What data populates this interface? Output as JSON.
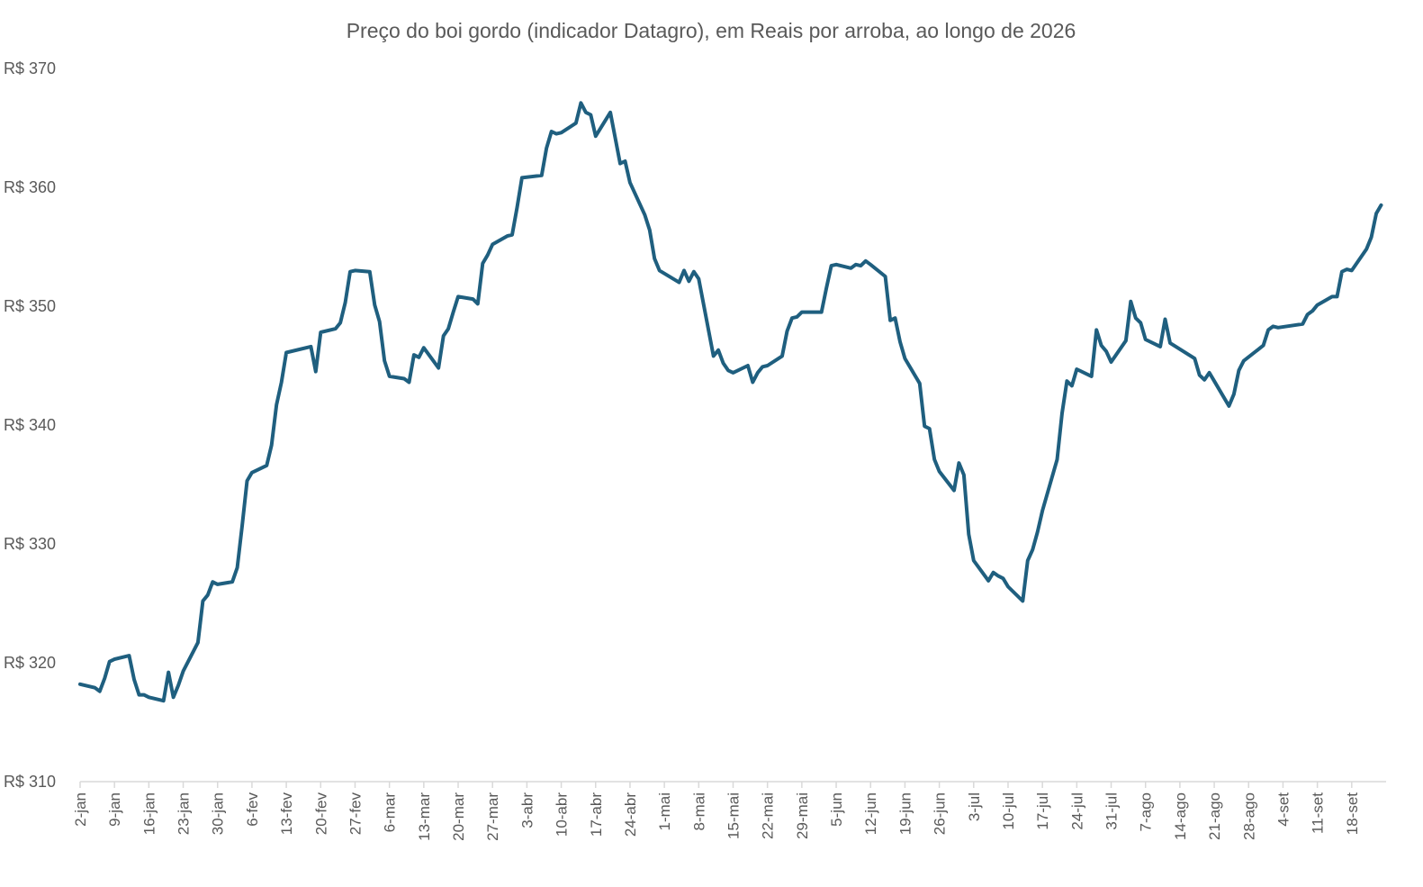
{
  "chart_data": {
    "type": "line",
    "title": "Preço do boi gordo (indicador Datagro), em Reais por arroba, ao longo de 2026",
    "xlabel": "",
    "ylabel": "",
    "ylim": [
      310,
      370
    ],
    "yticks": [
      310,
      320,
      330,
      340,
      350,
      360,
      370
    ],
    "ytick_prefix": "R$ ",
    "grid": false,
    "legend": "none",
    "colors": {
      "line": "#1f5f7f",
      "axis": "#d9d9d9",
      "text": "#595959"
    },
    "xlim": [
      "2-jan",
      "25-set"
    ],
    "xticks": [
      "2-jan",
      "9-jan",
      "16-jan",
      "23-jan",
      "30-jan",
      "6-fev",
      "13-fev",
      "20-fev",
      "27-fev",
      "6-mar",
      "13-mar",
      "20-mar",
      "27-mar",
      "3-abr",
      "10-abr",
      "17-abr",
      "24-abr",
      "1-mai",
      "8-mai",
      "15-mai",
      "22-mai",
      "29-mai",
      "5-jun",
      "12-jun",
      "19-jun",
      "26-jun",
      "3-jul",
      "10-jul",
      "17-jul",
      "24-jul",
      "31-jul",
      "7-ago",
      "14-ago",
      "21-ago",
      "28-ago",
      "4-set",
      "11-set",
      "18-set"
    ],
    "series": [
      {
        "points": [
          [
            "2-jan",
            318.2
          ],
          [
            "5-jan",
            317.9
          ],
          [
            "6-jan",
            317.6
          ],
          [
            "7-jan",
            318.7
          ],
          [
            "8-jan",
            320.1
          ],
          [
            "9-jan",
            320.3
          ],
          [
            "12-jan",
            320.6
          ],
          [
            "13-jan",
            318.6
          ],
          [
            "14-jan",
            317.3
          ],
          [
            "15-jan",
            317.3
          ],
          [
            "16-jan",
            317.1
          ],
          [
            "19-jan",
            316.8
          ],
          [
            "20-jan",
            319.2
          ],
          [
            "21-jan",
            317.1
          ],
          [
            "22-jan",
            318.1
          ],
          [
            "23-jan",
            319.3
          ],
          [
            "26-jan",
            321.7
          ],
          [
            "27-jan",
            325.2
          ],
          [
            "28-jan",
            325.7
          ],
          [
            "29-jan",
            326.8
          ],
          [
            "30-jan",
            326.6
          ],
          [
            "2-fev",
            326.8
          ],
          [
            "3-fev",
            328.0
          ],
          [
            "4-fev",
            331.5
          ],
          [
            "5-fev",
            335.3
          ],
          [
            "6-fev",
            336.0
          ],
          [
            "9-fev",
            336.6
          ],
          [
            "10-fev",
            338.3
          ],
          [
            "11-fev",
            341.7
          ],
          [
            "12-fev",
            343.6
          ],
          [
            "13-fev",
            346.1
          ],
          [
            "18-fev",
            346.6
          ],
          [
            "19-fev",
            344.5
          ],
          [
            "20-fev",
            347.8
          ],
          [
            "23-fev",
            348.1
          ],
          [
            "24-fev",
            348.6
          ],
          [
            "25-fev",
            350.3
          ],
          [
            "26-fev",
            352.9
          ],
          [
            "27-fev",
            353.0
          ],
          [
            "2-mar",
            352.9
          ],
          [
            "3-mar",
            350.1
          ],
          [
            "4-mar",
            348.7
          ],
          [
            "5-mar",
            345.4
          ],
          [
            "6-mar",
            344.1
          ],
          [
            "9-mar",
            343.9
          ],
          [
            "10-mar",
            343.6
          ],
          [
            "11-mar",
            345.9
          ],
          [
            "12-mar",
            345.7
          ],
          [
            "13-mar",
            346.5
          ],
          [
            "16-mar",
            344.8
          ],
          [
            "17-mar",
            347.5
          ],
          [
            "18-mar",
            348.1
          ],
          [
            "19-mar",
            349.5
          ],
          [
            "20-mar",
            350.8
          ],
          [
            "23-mar",
            350.6
          ],
          [
            "24-mar",
            350.2
          ],
          [
            "25-mar",
            353.6
          ],
          [
            "26-mar",
            354.3
          ],
          [
            "27-mar",
            355.2
          ],
          [
            "30-mar",
            355.9
          ],
          [
            "31-mar",
            356.0
          ],
          [
            "1-abr",
            358.3
          ],
          [
            "2-abr",
            360.8
          ],
          [
            "6-abr",
            361.0
          ],
          [
            "7-abr",
            363.3
          ],
          [
            "8-abr",
            364.7
          ],
          [
            "9-abr",
            364.5
          ],
          [
            "10-abr",
            364.6
          ],
          [
            "13-abr",
            365.4
          ],
          [
            "14-abr",
            367.1
          ],
          [
            "15-abr",
            366.3
          ],
          [
            "16-abr",
            366.1
          ],
          [
            "17-abr",
            364.3
          ],
          [
            "20-abr",
            366.3
          ],
          [
            "22-abr",
            362.0
          ],
          [
            "23-abr",
            362.2
          ],
          [
            "24-abr",
            360.4
          ],
          [
            "27-abr",
            357.7
          ],
          [
            "28-abr",
            356.4
          ],
          [
            "29-abr",
            354.0
          ],
          [
            "30-abr",
            353.0
          ],
          [
            "4-mai",
            352.0
          ],
          [
            "5-mai",
            353.0
          ],
          [
            "6-mai",
            352.1
          ],
          [
            "7-mai",
            352.9
          ],
          [
            "8-mai",
            352.3
          ],
          [
            "11-mai",
            345.8
          ],
          [
            "12-mai",
            346.3
          ],
          [
            "13-mai",
            345.2
          ],
          [
            "14-mai",
            344.6
          ],
          [
            "15-mai",
            344.4
          ],
          [
            "18-mai",
            345.0
          ],
          [
            "19-mai",
            343.6
          ],
          [
            "20-mai",
            344.4
          ],
          [
            "21-mai",
            344.9
          ],
          [
            "22-mai",
            345.0
          ],
          [
            "25-mai",
            345.8
          ],
          [
            "26-mai",
            347.9
          ],
          [
            "27-mai",
            349.0
          ],
          [
            "28-mai",
            349.1
          ],
          [
            "29-mai",
            349.5
          ],
          [
            "1-jun",
            349.5
          ],
          [
            "2-jun",
            349.5
          ],
          [
            "3-jun",
            351.5
          ],
          [
            "4-jun",
            353.4
          ],
          [
            "5-jun",
            353.5
          ],
          [
            "8-jun",
            353.2
          ],
          [
            "9-jun",
            353.5
          ],
          [
            "10-jun",
            353.4
          ],
          [
            "11-jun",
            353.8
          ],
          [
            "12-jun",
            353.5
          ],
          [
            "15-jun",
            352.5
          ],
          [
            "16-jun",
            348.8
          ],
          [
            "17-jun",
            349.0
          ],
          [
            "18-jun",
            347.0
          ],
          [
            "19-jun",
            345.6
          ],
          [
            "22-jun",
            343.5
          ],
          [
            "23-jun",
            339.9
          ],
          [
            "24-jun",
            339.7
          ],
          [
            "25-jun",
            337.1
          ],
          [
            "26-jun",
            336.1
          ],
          [
            "29-jun",
            334.5
          ],
          [
            "30-jun",
            336.8
          ],
          [
            "1-jul",
            335.8
          ],
          [
            "2-jul",
            330.8
          ],
          [
            "3-jul",
            328.6
          ],
          [
            "6-jul",
            326.9
          ],
          [
            "7-jul",
            327.6
          ],
          [
            "8-jul",
            327.3
          ],
          [
            "9-jul",
            327.1
          ],
          [
            "10-jul",
            326.4
          ],
          [
            "13-jul",
            325.2
          ],
          [
            "14-jul",
            328.6
          ],
          [
            "15-jul",
            329.5
          ],
          [
            "16-jul",
            331.0
          ],
          [
            "17-jul",
            332.8
          ],
          [
            "20-jul",
            337.1
          ],
          [
            "21-jul",
            341.0
          ],
          [
            "22-jul",
            343.7
          ],
          [
            "23-jul",
            343.3
          ],
          [
            "24-jul",
            344.7
          ],
          [
            "27-jul",
            344.1
          ],
          [
            "28-jul",
            348.0
          ],
          [
            "29-jul",
            346.7
          ],
          [
            "30-jul",
            346.2
          ],
          [
            "31-jul",
            345.3
          ],
          [
            "3-ago",
            347.1
          ],
          [
            "4-ago",
            350.4
          ],
          [
            "5-ago",
            349.0
          ],
          [
            "6-ago",
            348.6
          ],
          [
            "7-ago",
            347.2
          ],
          [
            "10-ago",
            346.6
          ],
          [
            "11-ago",
            348.9
          ],
          [
            "12-ago",
            346.9
          ],
          [
            "17-ago",
            345.6
          ],
          [
            "18-ago",
            344.2
          ],
          [
            "19-ago",
            343.8
          ],
          [
            "20-ago",
            344.4
          ],
          [
            "21-ago",
            343.7
          ],
          [
            "24-ago",
            341.6
          ],
          [
            "25-ago",
            342.6
          ],
          [
            "26-ago",
            344.6
          ],
          [
            "27-ago",
            345.4
          ],
          [
            "31-ago",
            346.7
          ],
          [
            "1-set",
            348.0
          ],
          [
            "2-set",
            348.3
          ],
          [
            "3-set",
            348.2
          ],
          [
            "8-set",
            348.5
          ],
          [
            "9-set",
            349.3
          ],
          [
            "10-set",
            349.6
          ],
          [
            "11-set",
            350.1
          ],
          [
            "14-set",
            350.8
          ],
          [
            "15-set",
            350.8
          ],
          [
            "16-set",
            352.9
          ],
          [
            "17-set",
            353.1
          ],
          [
            "18-set",
            353.0
          ],
          [
            "21-set",
            354.8
          ],
          [
            "22-set",
            355.8
          ],
          [
            "23-set",
            357.8
          ],
          [
            "24-set",
            358.5
          ]
        ]
      }
    ]
  }
}
